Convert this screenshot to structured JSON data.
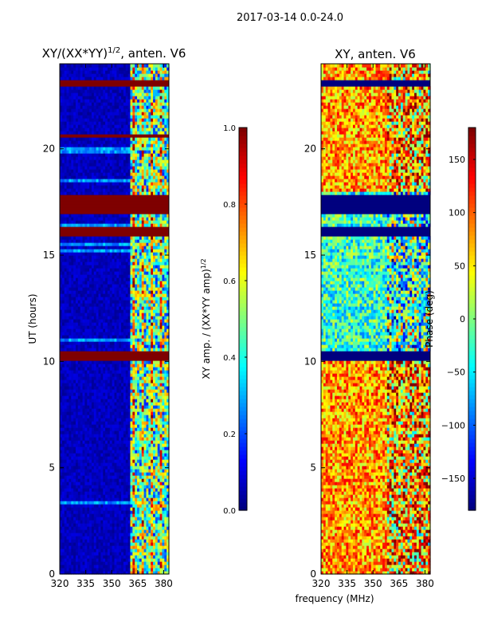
{
  "figure_title": "2017-03-14 0.0-24.0",
  "xlabel_shared": "frequency (MHz)",
  "colors": {
    "jet_stops": [
      "#00007f",
      "#0000ff",
      "#007fff",
      "#00ffff",
      "#7fff7f",
      "#ffff00",
      "#ff7f00",
      "#ff0000",
      "#7f0000"
    ],
    "frame": "#000000",
    "grid_line": "#000000"
  },
  "chart_data": [
    {
      "type": "heatmap",
      "title_main": "XY/(XX*YY)",
      "title_sup": "1/2",
      "title_tail": ", anten. V6",
      "xlabel": "",
      "ylabel": "UT (hours)",
      "xlim": [
        320,
        383
      ],
      "ylim": [
        0,
        24
      ],
      "xticks": [
        320,
        335,
        350,
        365,
        380
      ],
      "yticks": [
        0,
        5,
        10,
        15,
        20
      ],
      "colorbar": {
        "label_main": "XY amp. / (XX*YY amp)",
        "label_sup": "1/2",
        "range": [
          0.0,
          1.0
        ],
        "ticks": [
          "0.0",
          "0.2",
          "0.4",
          "0.6",
          "0.8",
          "1.0"
        ],
        "tick_values": [
          0.0,
          0.2,
          0.4,
          0.6,
          0.8,
          1.0
        ]
      },
      "saturated_bands_hours": [
        [
          23.0,
          23.3
        ],
        [
          20.5,
          20.7
        ],
        [
          16.9,
          17.9
        ],
        [
          15.9,
          16.4
        ],
        [
          10.1,
          10.5
        ]
      ],
      "active_freq_range_mhz": [
        361,
        383
      ],
      "low_value_freq_range_mhz": [
        320,
        361
      ]
    },
    {
      "type": "heatmap",
      "title_main": "XY, anten. V6",
      "xlabel": "frequency (MHz)",
      "ylabel": "",
      "xlim": [
        320,
        383
      ],
      "ylim": [
        0,
        24
      ],
      "xticks": [
        320,
        335,
        350,
        365,
        380
      ],
      "yticks": [
        0,
        5,
        10,
        15,
        20
      ],
      "colorbar": {
        "label": "Phase (deg)",
        "range": [
          -180,
          180
        ],
        "ticks": [
          "150",
          "100",
          "50",
          "0",
          "−50",
          "−100",
          "−150"
        ],
        "tick_values": [
          150,
          100,
          50,
          0,
          -50,
          -100,
          -150
        ]
      },
      "dark_bands_hours": [
        [
          23.0,
          23.3
        ],
        [
          16.9,
          17.9
        ],
        [
          15.9,
          16.4
        ],
        [
          10.1,
          10.5
        ]
      ]
    }
  ]
}
